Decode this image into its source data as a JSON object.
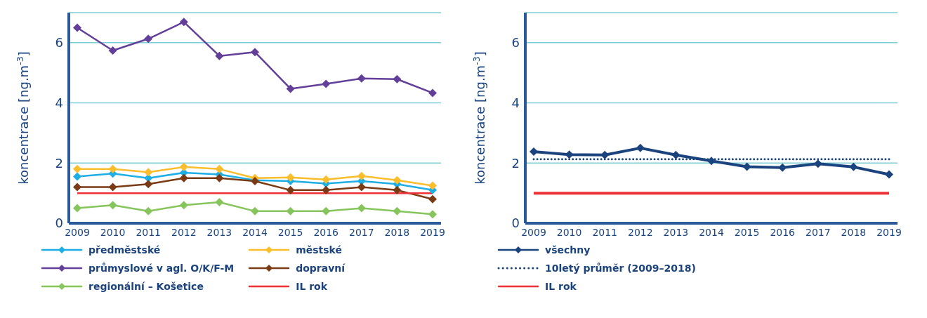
{
  "chart_data": [
    {
      "type": "line",
      "categories": [
        "2009",
        "2010",
        "2011",
        "2012",
        "2013",
        "2014",
        "2015",
        "2016",
        "2017",
        "2018",
        "2019"
      ],
      "ylabel": "koncentrace [ng.m$^{-3}$]",
      "ylim": [
        0,
        7
      ],
      "yticks": [
        0,
        2,
        4,
        6
      ],
      "grid": "y",
      "legend": "bottom",
      "marker": "diamond",
      "line_style": "solid",
      "series": [
        {
          "name": "předměstské",
          "color": "#1eaee6",
          "values": [
            1.55,
            1.65,
            1.5,
            1.68,
            1.62,
            1.43,
            1.4,
            1.32,
            1.4,
            1.3,
            1.1
          ]
        },
        {
          "name": "městské",
          "color": "#fbbd2b",
          "values": [
            1.8,
            1.8,
            1.7,
            1.87,
            1.8,
            1.5,
            1.52,
            1.45,
            1.57,
            1.43,
            1.25
          ]
        },
        {
          "name": "průmyslové v agl. O/K/F-M",
          "color": "#633f9a",
          "values": [
            6.5,
            5.74,
            6.13,
            6.69,
            5.56,
            5.69,
            4.47,
            4.63,
            4.81,
            4.79,
            4.33
          ]
        },
        {
          "name": "dopravní",
          "color": "#7a3a14",
          "values": [
            1.2,
            1.2,
            1.3,
            1.5,
            1.5,
            1.4,
            1.1,
            1.1,
            1.2,
            1.1,
            0.8
          ]
        },
        {
          "name": "regionální – Košetice",
          "color": "#86c55c",
          "values": [
            0.5,
            0.6,
            0.4,
            0.6,
            0.7,
            0.4,
            0.4,
            0.4,
            0.5,
            0.4,
            0.3
          ]
        },
        {
          "name": "IL rok",
          "color": "#ee3136",
          "marker": "none",
          "values": [
            1,
            1,
            1,
            1,
            1,
            1,
            1,
            1,
            1,
            1,
            1
          ]
        }
      ]
    },
    {
      "type": "line",
      "categories": [
        "2009",
        "2010",
        "2011",
        "2012",
        "2013",
        "2014",
        "2015",
        "2016",
        "2017",
        "2018",
        "2019"
      ],
      "ylabel": "koncentrace [ng.m$^{-3}$]",
      "ylim": [
        0,
        7
      ],
      "yticks": [
        0,
        2,
        4,
        6
      ],
      "grid": "y",
      "legend": "bottom",
      "marker": "diamond",
      "line_style": "solid",
      "series": [
        {
          "name": "všechny",
          "color": "#1b447f",
          "values": [
            2.38,
            2.28,
            2.27,
            2.5,
            2.27,
            2.07,
            1.88,
            1.85,
            1.98,
            1.87,
            1.62
          ]
        },
        {
          "name": "10letý průměr (2009–2018)",
          "color": "#1b447f",
          "marker": "none",
          "line_style": "dotted",
          "values": [
            2.13,
            2.13,
            2.13,
            2.13,
            2.13,
            2.13,
            2.13,
            2.13,
            2.13,
            2.13,
            2.13
          ]
        },
        {
          "name": "IL rok",
          "color": "#ee3136",
          "marker": "none",
          "values": [
            1,
            1,
            1,
            1,
            1,
            1,
            1,
            1,
            1,
            1,
            1
          ]
        }
      ]
    }
  ]
}
